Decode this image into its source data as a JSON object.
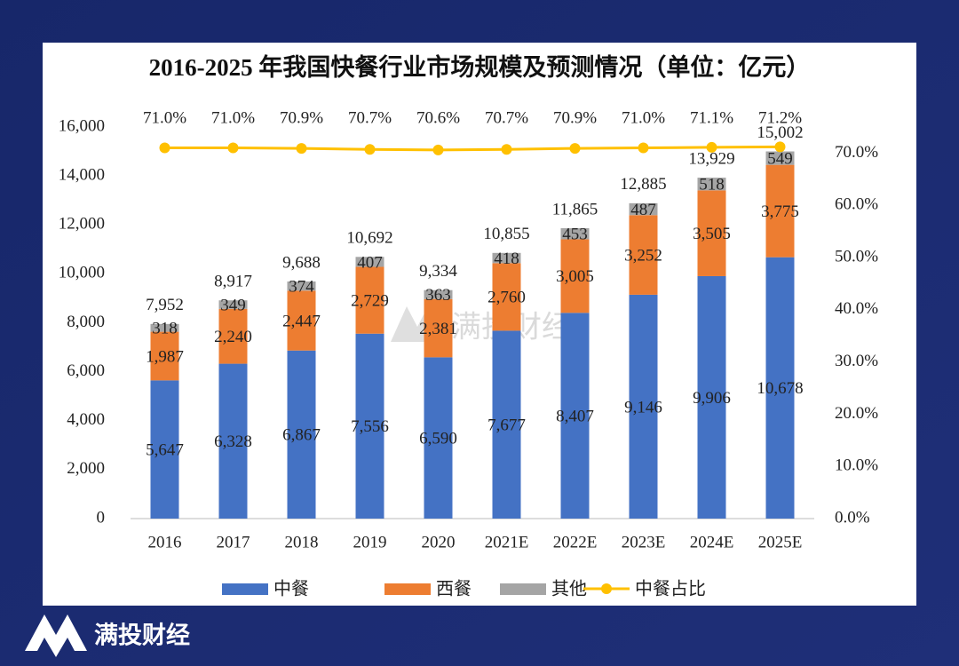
{
  "brand": "满投财经",
  "chart_data": {
    "type": "bar",
    "stacked": true,
    "title": "2016-2025 年我国快餐行业市场规模及预测情况（单位：亿元）",
    "categories": [
      "2016",
      "2017",
      "2018",
      "2019",
      "2020",
      "2021E",
      "2022E",
      "2023E",
      "2024E",
      "2025E"
    ],
    "series": [
      {
        "name": "中餐",
        "color": "#4472c4",
        "values": [
          5647,
          6328,
          6867,
          7556,
          6590,
          7677,
          8407,
          9146,
          9906,
          10678
        ],
        "value_labels": [
          "5,647",
          "6,328",
          "6,867",
          "7,556",
          "6,590",
          "7,677",
          "8,407",
          "9,146",
          "9,906",
          "10,678"
        ]
      },
      {
        "name": "西餐",
        "color": "#ed7d31",
        "values": [
          1987,
          2240,
          2447,
          2729,
          2381,
          2760,
          3005,
          3252,
          3505,
          3775
        ],
        "value_labels": [
          "1,987",
          "2,240",
          "2,447",
          "2,729",
          "2,381",
          "2,760",
          "3,005",
          "3,252",
          "3,505",
          "3,775"
        ]
      },
      {
        "name": "其他",
        "color": "#a5a5a5",
        "values": [
          318,
          349,
          374,
          407,
          363,
          418,
          453,
          487,
          518,
          549
        ]
      },
      {
        "name": "中餐占比",
        "type": "line",
        "axis": "y2",
        "color": "#ffc000",
        "values": [
          71.0,
          71.0,
          70.9,
          70.7,
          70.6,
          70.7,
          70.9,
          71.0,
          71.1,
          71.2
        ],
        "value_labels": [
          "71.0%",
          "71.0%",
          "70.9%",
          "70.7%",
          "70.6%",
          "70.7%",
          "70.9%",
          "71.0%",
          "71.1%",
          "71.2%"
        ]
      }
    ],
    "totals": [
      7952,
      8917,
      9688,
      10692,
      9334,
      10855,
      11865,
      12885,
      13929,
      15002
    ],
    "total_labels": [
      "7,952",
      "8,917",
      "9,688",
      "10,692",
      "9,334",
      "10,855",
      "11,865",
      "12,885",
      "13,929",
      "15,002"
    ],
    "ylim": [
      0,
      16000
    ],
    "yticks": [
      0,
      {
        "value": 2000,
        "label": "2,000"
      },
      {
        "value": 4000,
        "label": "4,000"
      },
      {
        "value": 6000,
        "label": "6,000"
      },
      {
        "value": 8000,
        "label": "8,000"
      },
      {
        "value": 10000,
        "label": "10,000"
      },
      {
        "value": 12000,
        "label": "12,000"
      },
      {
        "value": 14000,
        "label": "14,000"
      },
      {
        "value": 16000,
        "label": "16,000"
      }
    ],
    "y2lim": [
      0,
      75
    ],
    "y2ticks": [
      {
        "value": 0,
        "label": "0.0%"
      },
      {
        "value": 10,
        "label": "10.0%"
      },
      {
        "value": 20,
        "label": "20.0%"
      },
      {
        "value": 30,
        "label": "30.0%"
      },
      {
        "value": 40,
        "label": "40.0%"
      },
      {
        "value": 50,
        "label": "50.0%"
      },
      {
        "value": 60,
        "label": "60.0%"
      },
      {
        "value": 70,
        "label": "70.0%"
      }
    ],
    "grid": false,
    "legend": "bottom"
  }
}
